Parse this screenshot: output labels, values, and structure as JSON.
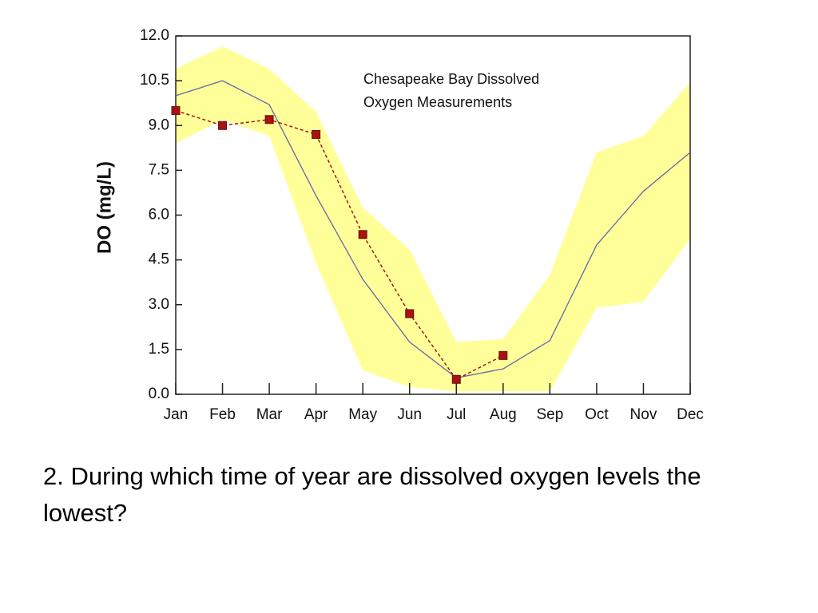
{
  "chart_data": {
    "type": "line",
    "annotation": [
      "Chesapeake Bay Dissolved",
      "Oxygen Measurements"
    ],
    "y_label": "DO (mg/L)",
    "categories": [
      "Jan",
      "Feb",
      "Mar",
      "Apr",
      "May",
      "Jun",
      "Jul",
      "Aug",
      "Sep",
      "Oct",
      "Nov",
      "Dec"
    ],
    "band": {
      "color": "#ffff99",
      "upper": [
        10.9,
        11.65,
        10.9,
        9.45,
        6.25,
        4.85,
        1.75,
        1.85,
        4.0,
        8.1,
        8.65,
        10.45
      ],
      "lower": [
        8.4,
        9.2,
        8.65,
        4.4,
        0.8,
        0.25,
        0.1,
        0.1,
        0.1,
        2.9,
        3.1,
        5.2
      ]
    },
    "series": [
      {
        "color": "#6666aa",
        "values": [
          10.0,
          10.5,
          9.7,
          6.65,
          3.85,
          1.75,
          0.55,
          0.85,
          1.8,
          5.0,
          6.8,
          8.1
        ]
      },
      {
        "color": "#aa1111",
        "dashed": true,
        "markers": true,
        "values": [
          9.5,
          9.0,
          9.2,
          8.7,
          5.35,
          2.7,
          0.5,
          1.3,
          null,
          null,
          null,
          null
        ]
      }
    ],
    "ylim": [
      0,
      12
    ],
    "yticks": [
      {
        "value": 0,
        "label": "0.0"
      },
      1.5,
      {
        "value": 3,
        "label": "3.0"
      },
      4.5,
      {
        "value": 6,
        "label": "6.0"
      },
      7.5,
      {
        "value": 9,
        "label": "9.0"
      },
      10.5,
      {
        "value": 12,
        "label": "12.0"
      }
    ]
  },
  "question": "2. During which time of year are dissolved oxygen levels the lowest?"
}
